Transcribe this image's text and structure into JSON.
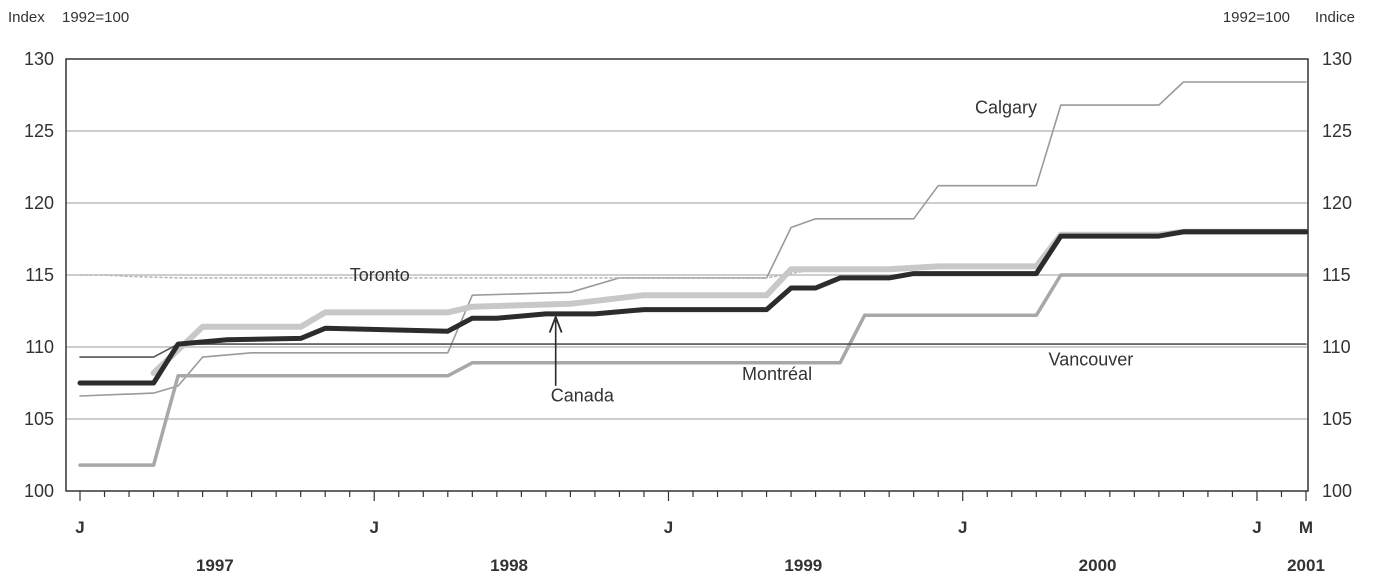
{
  "header": {
    "left_unit": "Index",
    "left_base": "1992=100",
    "right_base": "1992=100",
    "right_unit": "Indice"
  },
  "chart_data": {
    "type": "line",
    "x_unit": "month index (0 = January 1997)",
    "ylim": [
      100,
      130
    ],
    "yticks": [
      100,
      105,
      110,
      115,
      120,
      125,
      130
    ],
    "xlim": [
      0,
      50
    ],
    "month_ticks": [
      {
        "x": 0,
        "label": "J"
      },
      {
        "x": 12,
        "label": "J"
      },
      {
        "x": 24,
        "label": "J"
      },
      {
        "x": 36,
        "label": "J"
      },
      {
        "x": 48,
        "label": "J"
      },
      {
        "x": 50,
        "label": "M"
      }
    ],
    "year_labels": [
      {
        "x": 5.5,
        "label": "1997"
      },
      {
        "x": 17.5,
        "label": "1998"
      },
      {
        "x": 29.5,
        "label": "1999"
      },
      {
        "x": 41.5,
        "label": "2000"
      },
      {
        "x": 50,
        "label": "2001"
      }
    ],
    "series": [
      {
        "name": "Calgary",
        "color": "#9a9a9a",
        "style": "thin",
        "points": [
          [
            0,
            106.6
          ],
          [
            3,
            106.8
          ],
          [
            4,
            107.3
          ],
          [
            5,
            109.3
          ],
          [
            7,
            109.6
          ],
          [
            9,
            109.6
          ],
          [
            12,
            109.6
          ],
          [
            15,
            109.6
          ],
          [
            16,
            113.6
          ],
          [
            20,
            113.8
          ],
          [
            22,
            114.8
          ],
          [
            24,
            114.8
          ],
          [
            28,
            114.8
          ],
          [
            29,
            118.3
          ],
          [
            30,
            118.9
          ],
          [
            34,
            118.9
          ],
          [
            35,
            121.2
          ],
          [
            39,
            121.2
          ],
          [
            40,
            126.8
          ],
          [
            44,
            126.8
          ],
          [
            45,
            128.4
          ],
          [
            50,
            128.4
          ]
        ]
      },
      {
        "name": "Toronto",
        "color": "#b8b8b8",
        "style": "dotted",
        "points": [
          [
            0,
            115.0
          ],
          [
            1,
            115.0
          ],
          [
            2,
            114.9
          ],
          [
            4,
            114.8
          ],
          [
            6,
            114.8
          ],
          [
            9,
            114.8
          ],
          [
            12,
            114.8
          ],
          [
            17,
            114.8
          ],
          [
            20,
            114.8
          ],
          [
            23,
            114.8
          ],
          [
            25,
            114.8
          ],
          [
            28,
            114.8
          ],
          [
            30,
            115.4
          ],
          [
            33,
            115.4
          ],
          [
            35,
            115.6
          ],
          [
            39,
            115.6
          ],
          [
            40,
            117.8
          ],
          [
            44,
            117.8
          ],
          [
            45,
            118.0
          ],
          [
            50,
            118.0
          ]
        ]
      },
      {
        "name": "Toronto-band",
        "color": "#c8c8c8",
        "style": "thick",
        "points": [
          [
            3,
            108.2
          ],
          [
            4,
            109.8
          ],
          [
            5,
            111.4
          ],
          [
            9,
            111.4
          ],
          [
            10,
            112.4
          ],
          [
            15,
            112.4
          ],
          [
            16,
            112.8
          ],
          [
            20,
            113.0
          ],
          [
            23,
            113.6
          ],
          [
            25,
            113.6
          ],
          [
            28,
            113.6
          ],
          [
            29,
            115.4
          ],
          [
            33,
            115.4
          ],
          [
            35,
            115.6
          ],
          [
            39,
            115.6
          ],
          [
            40,
            117.8
          ],
          [
            44,
            117.8
          ],
          [
            45,
            118.0
          ],
          [
            50,
            118.0
          ]
        ]
      },
      {
        "name": "Montréal",
        "color": "#a8a8a8",
        "style": "medium",
        "points": [
          [
            0,
            101.8
          ],
          [
            3,
            101.8
          ],
          [
            4,
            108.0
          ],
          [
            6,
            108.0
          ],
          [
            9,
            108.0
          ],
          [
            12,
            108.0
          ],
          [
            15,
            108.0
          ],
          [
            16,
            108.9
          ],
          [
            20,
            108.9
          ],
          [
            23,
            108.9
          ],
          [
            25,
            108.9
          ],
          [
            28,
            108.9
          ],
          [
            31,
            108.9
          ],
          [
            32,
            112.2
          ],
          [
            35,
            112.2
          ],
          [
            38,
            112.2
          ],
          [
            39,
            112.2
          ],
          [
            40,
            115.0
          ],
          [
            44,
            115.0
          ],
          [
            50,
            115.0
          ]
        ]
      },
      {
        "name": "Vancouver",
        "color": "#555555",
        "style": "thin",
        "points": [
          [
            0,
            109.3
          ],
          [
            3,
            109.3
          ],
          [
            4,
            110.2
          ],
          [
            50,
            110.2
          ]
        ]
      },
      {
        "name": "Canada",
        "color": "#2c2c2c",
        "style": "bold",
        "points": [
          [
            0,
            107.5
          ],
          [
            3,
            107.5
          ],
          [
            4,
            110.2
          ],
          [
            6,
            110.5
          ],
          [
            9,
            110.6
          ],
          [
            10,
            111.3
          ],
          [
            15,
            111.1
          ],
          [
            16,
            112.0
          ],
          [
            17,
            112.0
          ],
          [
            19,
            112.3
          ],
          [
            21,
            112.3
          ],
          [
            23,
            112.6
          ],
          [
            28,
            112.6
          ],
          [
            29,
            114.1
          ],
          [
            30,
            114.1
          ],
          [
            31,
            114.8
          ],
          [
            33,
            114.8
          ],
          [
            34,
            115.1
          ],
          [
            39,
            115.1
          ],
          [
            40,
            117.7
          ],
          [
            44,
            117.7
          ],
          [
            45,
            118.0
          ],
          [
            50,
            118.0
          ]
        ]
      }
    ],
    "annotations": [
      {
        "text": "Calgary",
        "x": 36.5,
        "y": 126.2
      },
      {
        "text": "Toronto",
        "x": 11.0,
        "y": 114.6
      },
      {
        "text": "Montréal",
        "x": 27.0,
        "y": 107.7
      },
      {
        "text": "Vancouver",
        "x": 39.5,
        "y": 108.7
      },
      {
        "text": "Canada",
        "x": 19.2,
        "y": 106.2
      }
    ]
  }
}
